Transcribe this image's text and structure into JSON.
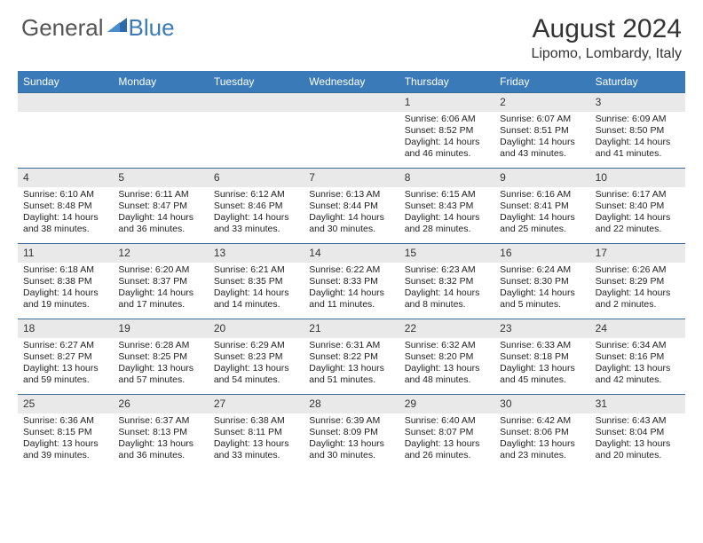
{
  "logo": {
    "general": "General",
    "blue": "Blue"
  },
  "title": "August 2024",
  "location": "Lipomo, Lombardy, Italy",
  "colors": {
    "header_bg": "#3a7ab8",
    "header_text": "#ffffff",
    "daynum_bg": "#e9e9e9",
    "week_border": "#3a6a9a",
    "text": "#222222",
    "logo_gray": "#555555",
    "logo_blue": "#3a7ab8"
  },
  "weekdays": [
    "Sunday",
    "Monday",
    "Tuesday",
    "Wednesday",
    "Thursday",
    "Friday",
    "Saturday"
  ],
  "weeks": [
    [
      {
        "n": "",
        "sr": "",
        "ss": "",
        "dl": ""
      },
      {
        "n": "",
        "sr": "",
        "ss": "",
        "dl": ""
      },
      {
        "n": "",
        "sr": "",
        "ss": "",
        "dl": ""
      },
      {
        "n": "",
        "sr": "",
        "ss": "",
        "dl": ""
      },
      {
        "n": "1",
        "sr": "Sunrise: 6:06 AM",
        "ss": "Sunset: 8:52 PM",
        "dl": "Daylight: 14 hours and 46 minutes."
      },
      {
        "n": "2",
        "sr": "Sunrise: 6:07 AM",
        "ss": "Sunset: 8:51 PM",
        "dl": "Daylight: 14 hours and 43 minutes."
      },
      {
        "n": "3",
        "sr": "Sunrise: 6:09 AM",
        "ss": "Sunset: 8:50 PM",
        "dl": "Daylight: 14 hours and 41 minutes."
      }
    ],
    [
      {
        "n": "4",
        "sr": "Sunrise: 6:10 AM",
        "ss": "Sunset: 8:48 PM",
        "dl": "Daylight: 14 hours and 38 minutes."
      },
      {
        "n": "5",
        "sr": "Sunrise: 6:11 AM",
        "ss": "Sunset: 8:47 PM",
        "dl": "Daylight: 14 hours and 36 minutes."
      },
      {
        "n": "6",
        "sr": "Sunrise: 6:12 AM",
        "ss": "Sunset: 8:46 PM",
        "dl": "Daylight: 14 hours and 33 minutes."
      },
      {
        "n": "7",
        "sr": "Sunrise: 6:13 AM",
        "ss": "Sunset: 8:44 PM",
        "dl": "Daylight: 14 hours and 30 minutes."
      },
      {
        "n": "8",
        "sr": "Sunrise: 6:15 AM",
        "ss": "Sunset: 8:43 PM",
        "dl": "Daylight: 14 hours and 28 minutes."
      },
      {
        "n": "9",
        "sr": "Sunrise: 6:16 AM",
        "ss": "Sunset: 8:41 PM",
        "dl": "Daylight: 14 hours and 25 minutes."
      },
      {
        "n": "10",
        "sr": "Sunrise: 6:17 AM",
        "ss": "Sunset: 8:40 PM",
        "dl": "Daylight: 14 hours and 22 minutes."
      }
    ],
    [
      {
        "n": "11",
        "sr": "Sunrise: 6:18 AM",
        "ss": "Sunset: 8:38 PM",
        "dl": "Daylight: 14 hours and 19 minutes."
      },
      {
        "n": "12",
        "sr": "Sunrise: 6:20 AM",
        "ss": "Sunset: 8:37 PM",
        "dl": "Daylight: 14 hours and 17 minutes."
      },
      {
        "n": "13",
        "sr": "Sunrise: 6:21 AM",
        "ss": "Sunset: 8:35 PM",
        "dl": "Daylight: 14 hours and 14 minutes."
      },
      {
        "n": "14",
        "sr": "Sunrise: 6:22 AM",
        "ss": "Sunset: 8:33 PM",
        "dl": "Daylight: 14 hours and 11 minutes."
      },
      {
        "n": "15",
        "sr": "Sunrise: 6:23 AM",
        "ss": "Sunset: 8:32 PM",
        "dl": "Daylight: 14 hours and 8 minutes."
      },
      {
        "n": "16",
        "sr": "Sunrise: 6:24 AM",
        "ss": "Sunset: 8:30 PM",
        "dl": "Daylight: 14 hours and 5 minutes."
      },
      {
        "n": "17",
        "sr": "Sunrise: 6:26 AM",
        "ss": "Sunset: 8:29 PM",
        "dl": "Daylight: 14 hours and 2 minutes."
      }
    ],
    [
      {
        "n": "18",
        "sr": "Sunrise: 6:27 AM",
        "ss": "Sunset: 8:27 PM",
        "dl": "Daylight: 13 hours and 59 minutes."
      },
      {
        "n": "19",
        "sr": "Sunrise: 6:28 AM",
        "ss": "Sunset: 8:25 PM",
        "dl": "Daylight: 13 hours and 57 minutes."
      },
      {
        "n": "20",
        "sr": "Sunrise: 6:29 AM",
        "ss": "Sunset: 8:23 PM",
        "dl": "Daylight: 13 hours and 54 minutes."
      },
      {
        "n": "21",
        "sr": "Sunrise: 6:31 AM",
        "ss": "Sunset: 8:22 PM",
        "dl": "Daylight: 13 hours and 51 minutes."
      },
      {
        "n": "22",
        "sr": "Sunrise: 6:32 AM",
        "ss": "Sunset: 8:20 PM",
        "dl": "Daylight: 13 hours and 48 minutes."
      },
      {
        "n": "23",
        "sr": "Sunrise: 6:33 AM",
        "ss": "Sunset: 8:18 PM",
        "dl": "Daylight: 13 hours and 45 minutes."
      },
      {
        "n": "24",
        "sr": "Sunrise: 6:34 AM",
        "ss": "Sunset: 8:16 PM",
        "dl": "Daylight: 13 hours and 42 minutes."
      }
    ],
    [
      {
        "n": "25",
        "sr": "Sunrise: 6:36 AM",
        "ss": "Sunset: 8:15 PM",
        "dl": "Daylight: 13 hours and 39 minutes."
      },
      {
        "n": "26",
        "sr": "Sunrise: 6:37 AM",
        "ss": "Sunset: 8:13 PM",
        "dl": "Daylight: 13 hours and 36 minutes."
      },
      {
        "n": "27",
        "sr": "Sunrise: 6:38 AM",
        "ss": "Sunset: 8:11 PM",
        "dl": "Daylight: 13 hours and 33 minutes."
      },
      {
        "n": "28",
        "sr": "Sunrise: 6:39 AM",
        "ss": "Sunset: 8:09 PM",
        "dl": "Daylight: 13 hours and 30 minutes."
      },
      {
        "n": "29",
        "sr": "Sunrise: 6:40 AM",
        "ss": "Sunset: 8:07 PM",
        "dl": "Daylight: 13 hours and 26 minutes."
      },
      {
        "n": "30",
        "sr": "Sunrise: 6:42 AM",
        "ss": "Sunset: 8:06 PM",
        "dl": "Daylight: 13 hours and 23 minutes."
      },
      {
        "n": "31",
        "sr": "Sunrise: 6:43 AM",
        "ss": "Sunset: 8:04 PM",
        "dl": "Daylight: 13 hours and 20 minutes."
      }
    ]
  ]
}
